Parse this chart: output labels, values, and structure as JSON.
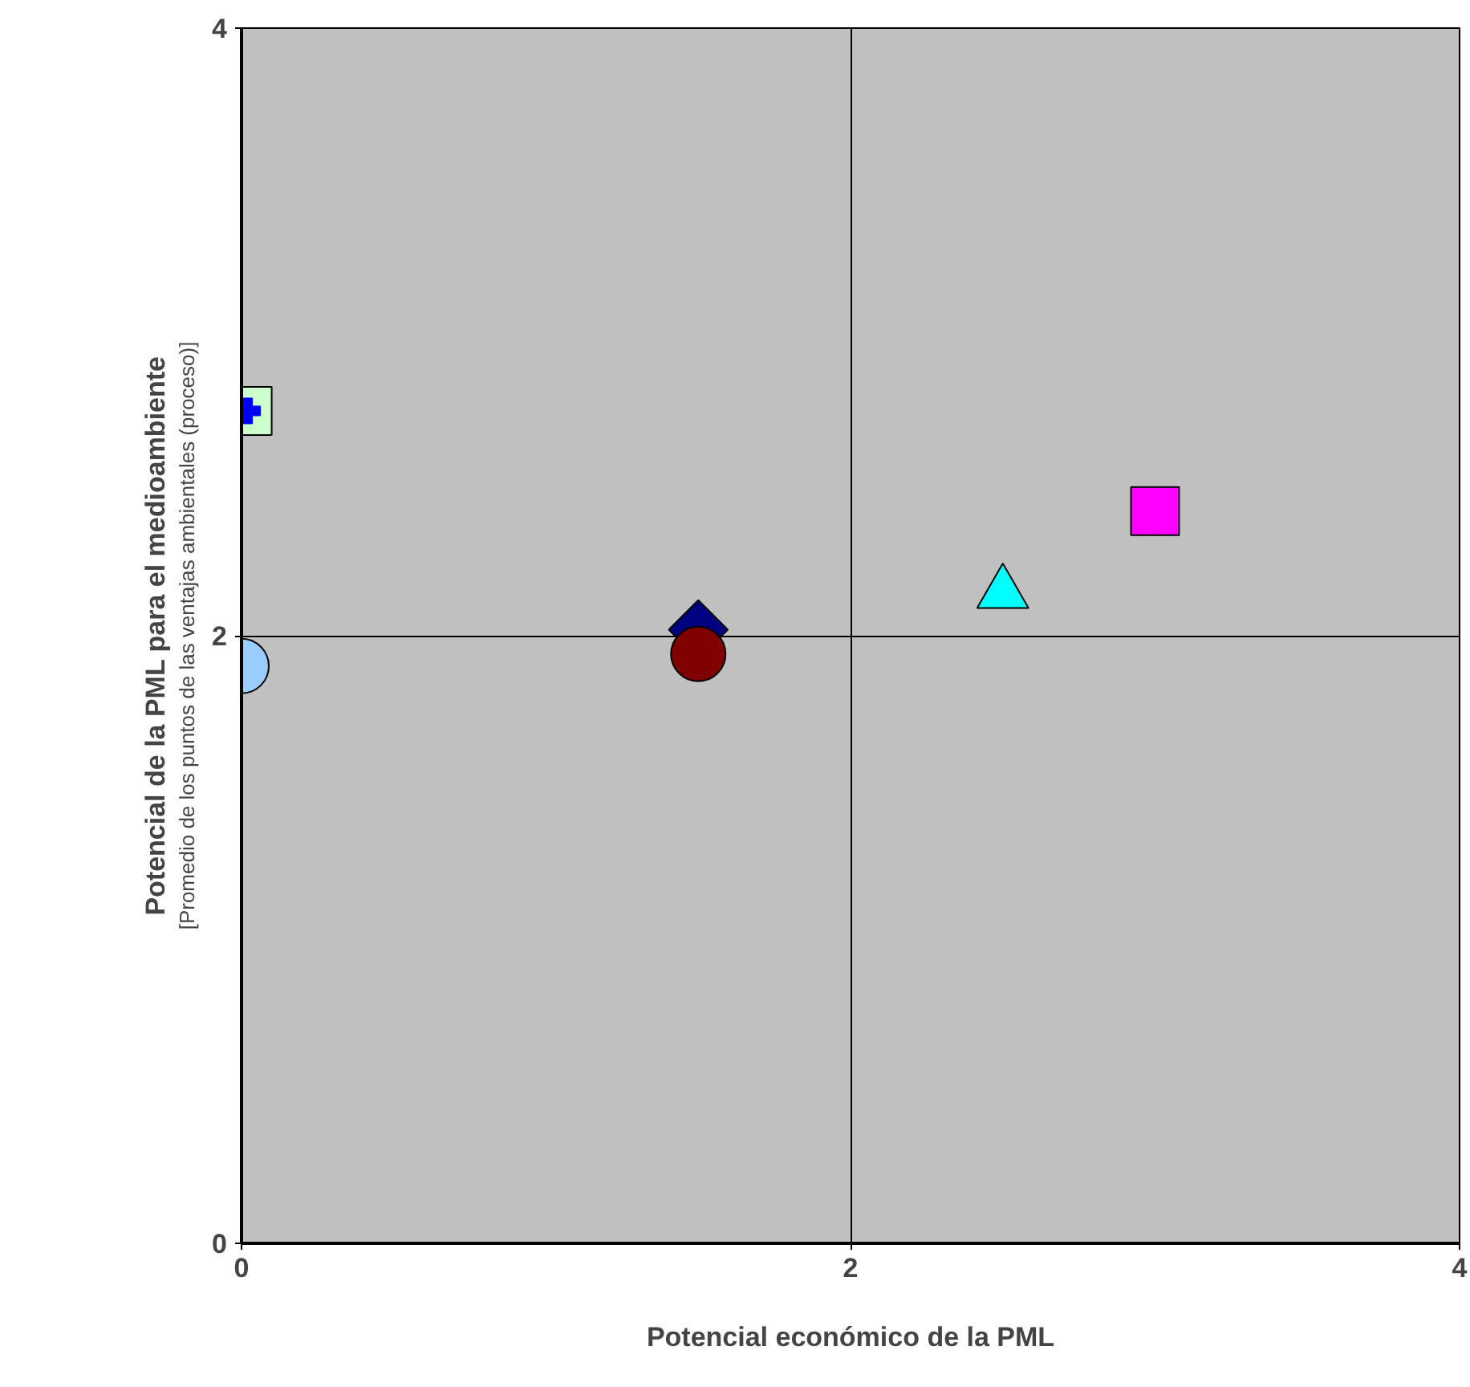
{
  "chart_data": {
    "type": "scatter",
    "xlabel": "Potencial económico de la PML",
    "ylabel": "Potencial de la PML para el medioambiente",
    "annotations": [
      "[Promedio de los puntos de las ventajas ambientales (proceso)]"
    ],
    "xlim": [
      0,
      4
    ],
    "ylim": [
      0,
      4
    ],
    "xticks": [
      0,
      2,
      4
    ],
    "yticks": [
      0,
      2,
      4
    ],
    "grid": true,
    "series": [
      {
        "color": "#ccffcc",
        "marker": "square",
        "x": [
          0.02
        ],
        "values": [
          2.74
        ]
      },
      {
        "color": "#0000ff",
        "marker": "cross",
        "x": [
          0.02
        ],
        "values": [
          2.74
        ]
      },
      {
        "color": "#99ccff",
        "marker": "circle",
        "x": [
          0.0
        ],
        "values": [
          1.9
        ]
      },
      {
        "color": "#000080",
        "marker": "diamond",
        "x": [
          1.5
        ],
        "values": [
          2.02
        ]
      },
      {
        "color": "#800000",
        "marker": "circle",
        "x": [
          1.5
        ],
        "values": [
          1.94
        ]
      },
      {
        "color": "#00ffff",
        "marker": "triangle",
        "x": [
          2.5
        ],
        "values": [
          2.14
        ]
      },
      {
        "color": "#ff00ff",
        "marker": "square",
        "x": [
          3.0
        ],
        "values": [
          2.41
        ]
      }
    ]
  }
}
